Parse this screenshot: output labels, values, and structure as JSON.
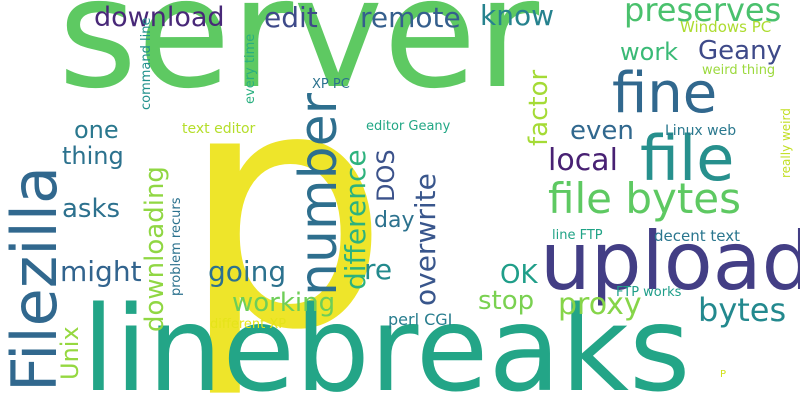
{
  "words": [
    {
      "text": "p",
      "color": "#eee52a"
    },
    {
      "text": "server",
      "color": "#5ec962"
    },
    {
      "text": "linebreaks",
      "color": "#23a587"
    },
    {
      "text": "upload",
      "color": "#433e85"
    },
    {
      "text": "file",
      "color": "#27908d"
    },
    {
      "text": "fine",
      "color": "#31688e"
    },
    {
      "text": "number",
      "color": "#2e6f8e"
    },
    {
      "text": "Filezilla",
      "color": "#31688e"
    },
    {
      "text": "file bytes",
      "color": "#5ec962"
    },
    {
      "text": "download",
      "color": "#482878"
    },
    {
      "text": "edit",
      "color": "#3e4a89"
    },
    {
      "text": "remote",
      "color": "#355f8d"
    },
    {
      "text": "know",
      "color": "#26828e"
    },
    {
      "text": "preserves",
      "color": "#4ac16d"
    },
    {
      "text": "work",
      "color": "#3aba76"
    },
    {
      "text": "Geany",
      "color": "#3e4a89"
    },
    {
      "text": "Windows PC",
      "color": "#addc30"
    },
    {
      "text": "weird thing",
      "color": "#9bd93c"
    },
    {
      "text": "really weird",
      "color": "#c2df23"
    },
    {
      "text": "XP PC",
      "color": "#2c728e"
    },
    {
      "text": "every time",
      "color": "#29af7f"
    },
    {
      "text": "command line",
      "color": "#21918c"
    },
    {
      "text": "one",
      "color": "#2a788e"
    },
    {
      "text": "text editor",
      "color": "#b5de2b"
    },
    {
      "text": "editor Geany",
      "color": "#22a785"
    },
    {
      "text": "factor",
      "color": "#a5db36"
    },
    {
      "text": "even",
      "color": "#31688e"
    },
    {
      "text": "Linux web",
      "color": "#2a788e"
    },
    {
      "text": "thing",
      "color": "#2c728e"
    },
    {
      "text": "local",
      "color": "#482173"
    },
    {
      "text": "difference",
      "color": "#2db27d"
    },
    {
      "text": "DOS",
      "color": "#3b528b"
    },
    {
      "text": "overwrite",
      "color": "#39568c"
    },
    {
      "text": "downloading",
      "color": "#90d743"
    },
    {
      "text": "asks",
      "color": "#2d718e"
    },
    {
      "text": "day",
      "color": "#2c728e"
    },
    {
      "text": "decent text",
      "color": "#2a768e"
    },
    {
      "text": "line FTP",
      "color": "#20a386"
    },
    {
      "text": "might",
      "color": "#32648e"
    },
    {
      "text": "going",
      "color": "#2c728e"
    },
    {
      "text": "re",
      "color": "#238a8d"
    },
    {
      "text": "OK",
      "color": "#1f9e89"
    },
    {
      "text": "working",
      "color": "#6ece58"
    },
    {
      "text": "stop",
      "color": "#7ad151"
    },
    {
      "text": "proxy",
      "color": "#86d549"
    },
    {
      "text": "bytes",
      "color": "#23898e"
    },
    {
      "text": "problem recurs",
      "color": "#2c728e"
    },
    {
      "text": "Unix",
      "color": "#95d840"
    },
    {
      "text": "FTP works",
      "color": "#1f9e89"
    },
    {
      "text": "perl CGI",
      "color": "#287d8e"
    },
    {
      "text": "different XP",
      "color": "#e5e419"
    },
    {
      "text": "P",
      "color": "#d2e21b"
    }
  ]
}
